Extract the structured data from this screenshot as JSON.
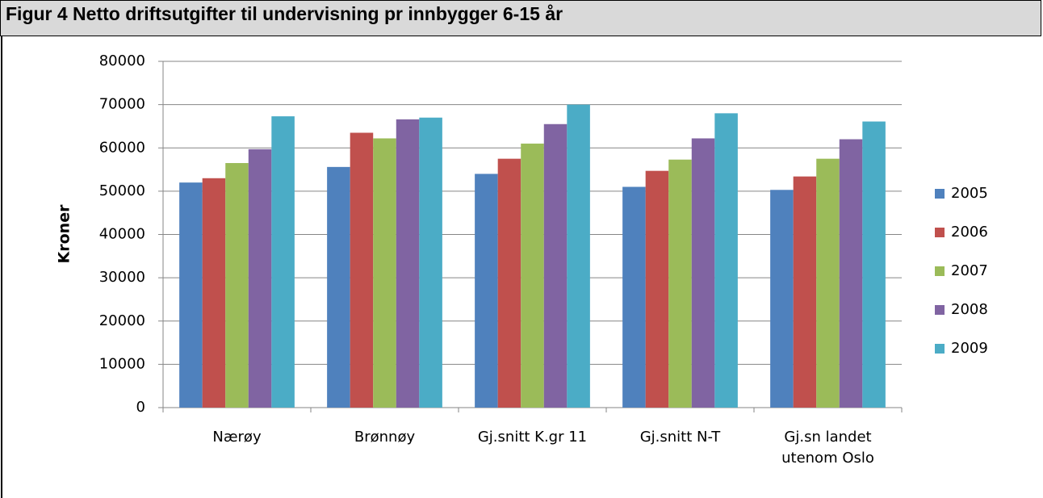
{
  "chart_data": {
    "type": "bar",
    "title": "Figur 4 Netto driftsutgifter til undervisning pr innbygger 6-15 år",
    "y_label": "Kroner",
    "categories": [
      "Nærøy",
      "Brønnøy",
      "Gj.snitt K.gr 11",
      "Gj.snitt N-T",
      "Gj.sn landet utenom Oslo"
    ],
    "series": [
      {
        "name": "2005",
        "color": "#4f81bd",
        "values": [
          52000,
          55600,
          54000,
          51000,
          50300
        ]
      },
      {
        "name": "2006",
        "color": "#c0504d",
        "values": [
          53000,
          63500,
          57500,
          54700,
          53400
        ]
      },
      {
        "name": "2007",
        "color": "#9bbb59",
        "values": [
          56500,
          62200,
          61000,
          57300,
          57500
        ]
      },
      {
        "name": "2008",
        "color": "#8064a2",
        "values": [
          59700,
          66600,
          65500,
          62200,
          62000
        ]
      },
      {
        "name": "2009",
        "color": "#4bacc6",
        "values": [
          67300,
          67000,
          70000,
          68000,
          66100
        ]
      }
    ],
    "ylim": [
      0,
      80000
    ],
    "yticks": [
      0,
      10000,
      20000,
      30000,
      40000,
      50000,
      60000,
      70000,
      80000
    ],
    "grid": true,
    "legend": "right"
  }
}
